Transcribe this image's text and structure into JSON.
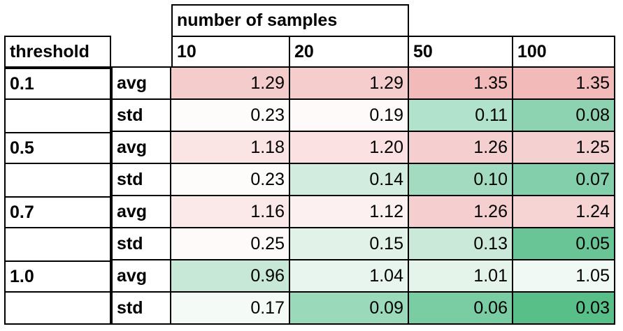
{
  "table": {
    "header_group": "number of samples",
    "row_header": "threshold",
    "columns": [
      "10",
      "20",
      "50",
      "100"
    ],
    "rows": [
      {
        "threshold": "0.1",
        "stat": "avg",
        "values": [
          "1.29",
          "1.29",
          "1.35",
          "1.35"
        ]
      },
      {
        "threshold": "",
        "stat": "std",
        "values": [
          "0.23",
          "0.19",
          "0.11",
          "0.08"
        ]
      },
      {
        "threshold": "0.5",
        "stat": "avg",
        "values": [
          "1.18",
          "1.20",
          "1.26",
          "1.25"
        ]
      },
      {
        "threshold": "",
        "stat": "std",
        "values": [
          "0.23",
          "0.14",
          "0.10",
          "0.07"
        ]
      },
      {
        "threshold": "0.7",
        "stat": "avg",
        "values": [
          "1.16",
          "1.12",
          "1.26",
          "1.24"
        ]
      },
      {
        "threshold": "",
        "stat": "std",
        "values": [
          "0.25",
          "0.15",
          "0.13",
          "0.05"
        ]
      },
      {
        "threshold": "1.0",
        "stat": "avg",
        "values": [
          "0.96",
          "1.04",
          "1.01",
          "1.05"
        ]
      },
      {
        "threshold": "",
        "stat": "std",
        "values": [
          "0.17",
          "0.09",
          "0.06",
          "0.03"
        ]
      }
    ],
    "cell_colors": [
      [
        "#f5cccc",
        "#f5cdcd",
        "#f2bbba",
        "#f2bbba"
      ],
      [
        "#fefbfb",
        "#fefafa",
        "#b1e2cc",
        "#8dd3b2"
      ],
      [
        "#fbe4e4",
        "#fbe1e1",
        "#f5cfcf",
        "#f5d0d0"
      ],
      [
        "#fefbfb",
        "#d2eddf",
        "#a2dbc0",
        "#83cfab"
      ],
      [
        "#fbe8e8",
        "#fdf0f0",
        "#f5cfcf",
        "#f6d4d4"
      ],
      [
        "#fefafa",
        "#e1f3e9",
        "#cae9d9",
        "#69c596"
      ],
      [
        "#c7e8d7",
        "#e8f5ee",
        "#e4f4eb",
        "#f1f9f5"
      ],
      [
        "#f4fbf7",
        "#9bd9bb",
        "#7acca3",
        "#59bf89"
      ]
    ]
  }
}
